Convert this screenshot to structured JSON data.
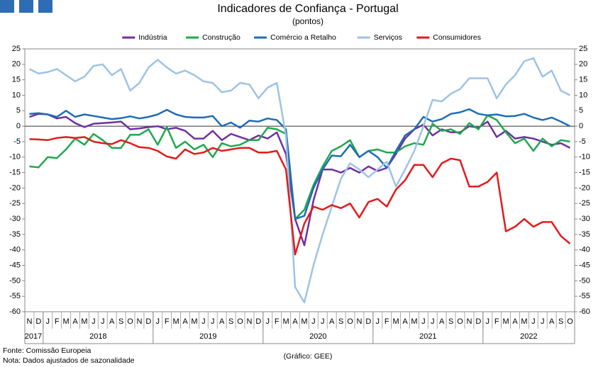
{
  "chart_data": {
    "type": "line",
    "title": "Indicadores de Confiança - Portugal",
    "subtitle": "(pontos)",
    "source": "Fonte: Comissão Europeia",
    "note": "Nota: Dados ajustados de sazonalidade",
    "credit": "(Gráfico: GEE)",
    "categories": [
      "N",
      "D",
      "J",
      "F",
      "M",
      "A",
      "M",
      "J",
      "J",
      "A",
      "S",
      "O",
      "N",
      "D",
      "J",
      "F",
      "M",
      "A",
      "M",
      "J",
      "J",
      "A",
      "S",
      "O",
      "N",
      "D",
      "J",
      "F",
      "M",
      "A",
      "M",
      "J",
      "J",
      "A",
      "S",
      "O",
      "N",
      "D",
      "J",
      "F",
      "M",
      "A",
      "M",
      "J",
      "J",
      "A",
      "S",
      "O",
      "N",
      "D",
      "J",
      "F",
      "M",
      "A",
      "M",
      "J",
      "J",
      "A",
      "S",
      "O"
    ],
    "years": [
      "2017",
      "2018",
      "2019",
      "2020",
      "2021",
      "2022"
    ],
    "ylim": [
      -60,
      25
    ],
    "yticks": [
      -60,
      -55,
      -50,
      -45,
      -40,
      -35,
      -30,
      -25,
      -20,
      -15,
      -10,
      -5,
      0,
      5,
      10,
      15,
      20,
      25
    ],
    "y2lim": [
      -60,
      25
    ],
    "y2ticks": [
      -60,
      -55,
      -50,
      -45,
      -40,
      -35,
      -30,
      -25,
      -20,
      -15,
      -10,
      -5,
      0,
      5,
      10,
      15,
      20,
      25
    ],
    "grid": false,
    "zero_line": true,
    "legend": "top",
    "series": [
      {
        "name": "Indústria",
        "color": "#7030a0",
        "values": [
          3,
          4,
          3.8,
          2.5,
          3,
          1,
          -0.3,
          0.8,
          1,
          1.2,
          1.5,
          -1,
          -0.7,
          -0.3,
          0,
          -1,
          -0.5,
          -1.5,
          -4,
          -4,
          -1.5,
          -4.5,
          -2.5,
          -3.5,
          -4.5,
          -3,
          -4,
          -2,
          -9,
          -30,
          -38.5,
          -24,
          -14,
          -14,
          -15,
          -13.5,
          -15,
          -13,
          -14.5,
          -13.5,
          -9,
          -4,
          -1,
          0.5,
          -3,
          -1,
          -2,
          -2,
          0,
          -0.5,
          1.5,
          -3.5,
          -1.5,
          -4,
          -3.5,
          -4,
          -5,
          -6,
          -5.5,
          -7
        ]
      },
      {
        "name": "Construção",
        "color": "#1fa84f",
        "values": [
          -13,
          -13.3,
          -10,
          -10.3,
          -7.5,
          -4,
          -6,
          -2.5,
          -4.5,
          -7,
          -7,
          -2.8,
          -2.8,
          -1,
          -6,
          -0.3,
          -7,
          -5,
          -7.5,
          -6,
          -10,
          -5.5,
          -6.5,
          -6,
          -4.5,
          -4.5,
          -0.5,
          -1,
          -2.5,
          -30,
          -27,
          -19,
          -13,
          -8,
          -6.5,
          -4.5,
          -10,
          -8,
          -7.5,
          -8.5,
          -8.5,
          -6.5,
          -5.5,
          -6,
          0.8,
          -1.5,
          -1,
          -2.5,
          1,
          -1,
          3.5,
          2,
          -2,
          -5.5,
          -4,
          -8,
          -4,
          -6.5,
          -4.5,
          -5
        ]
      },
      {
        "name": "Comércio a Retalho",
        "color": "#1f6db5",
        "values": [
          4,
          4.2,
          3.8,
          3,
          5,
          3,
          3.8,
          3.3,
          2.8,
          2.3,
          2.6,
          3.2,
          2.5,
          3,
          3.8,
          5.3,
          3.8,
          3,
          2.8,
          2.8,
          3.3,
          0,
          1.2,
          -0.5,
          1.8,
          1.5,
          2.5,
          2,
          -1,
          -30,
          -29,
          -20,
          -14,
          -9.5,
          -9.7,
          -6,
          -10,
          -8,
          -10,
          -13.5,
          -8,
          -3,
          -1,
          3,
          1.5,
          2.3,
          4,
          4.5,
          5.5,
          4,
          3.5,
          3.8,
          3.2,
          3.3,
          4,
          2.8,
          2,
          2.8,
          1.5,
          0
        ]
      },
      {
        "name": "Serviços",
        "color": "#9dc3e6",
        "values": [
          18.5,
          17,
          17.5,
          18.5,
          16.5,
          14.5,
          16,
          19.5,
          20,
          16.5,
          18.5,
          11.5,
          14,
          19,
          21.5,
          19,
          17,
          18,
          16.5,
          14.5,
          14,
          11,
          11.5,
          14,
          13.5,
          9,
          12.5,
          14,
          -3,
          -52,
          -57,
          -45,
          -35,
          -26,
          -17,
          -12,
          -14,
          -16.5,
          -14,
          -11.5,
          -19.5,
          -14,
          -8,
          0,
          8.5,
          8,
          10.5,
          12,
          15.5,
          15.5,
          15.5,
          9,
          13.5,
          16.5,
          21,
          22,
          16,
          18,
          11.5,
          10
        ]
      },
      {
        "name": "Consumidores",
        "color": "#e31a1c",
        "values": [
          -4.2,
          -4.3,
          -4.5,
          -3.8,
          -3.5,
          -3.8,
          -3.5,
          -5,
          -5.5,
          -5.8,
          -4.5,
          -5.5,
          -6.8,
          -7,
          -8,
          -9.8,
          -10.5,
          -7.5,
          -9,
          -8.5,
          -7,
          -8,
          -7.5,
          -7,
          -7,
          -8.5,
          -8.5,
          -8,
          -14,
          -41.5,
          -31.5,
          -26,
          -27,
          -25.5,
          -26.5,
          -25,
          -29.5,
          -24.5,
          -23.5,
          -26,
          -20.5,
          -17.5,
          -12.5,
          -12.5,
          -16.5,
          -12,
          -10.5,
          -11,
          -19.5,
          -19.5,
          -18,
          -15,
          -34,
          -32.5,
          -30,
          -32.5,
          -31,
          -31,
          -35.5,
          -38
        ]
      }
    ]
  }
}
